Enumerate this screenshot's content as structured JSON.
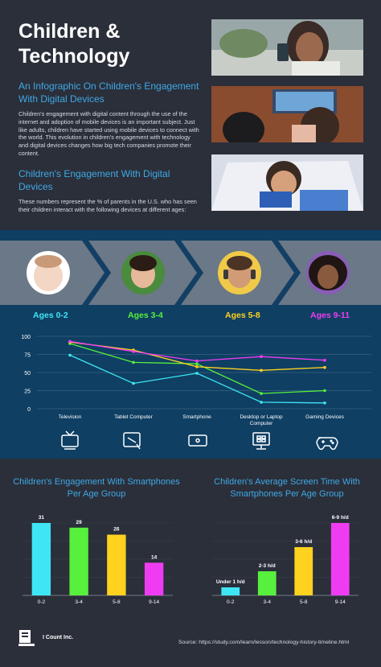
{
  "header": {
    "title": "Children & Technology",
    "subtitle": "An Infographic On Children's Engagement With Digital Devices",
    "intro": "Children's engagement with digital content through the use of the internet and adoption of mobile devices is an important subject. Just like adults, children have started using mobile devices to connect with the world. This evolution in children's engagement with technology and digital devices changes how big tech companies promote their content.",
    "section_title": "Children's Engagement With Digital Devices",
    "section_note": "These numbers represent the % of parents in the U.S. who has seen their children interact with the following devices at different ages:"
  },
  "age_groups": [
    {
      "label": "Ages 0-2",
      "color": "#3ee6f5"
    },
    {
      "label": "Ages 3-4",
      "color": "#57f03c"
    },
    {
      "label": "Ages 5-8",
      "color": "#ffd21f"
    },
    {
      "label": "Ages 9-11",
      "color": "#ef3cf2"
    }
  ],
  "chart_data": [
    {
      "type": "line",
      "categories": [
        "Television",
        "Tablet Computer",
        "Smartphone",
        "Desktop or Laptop Computer",
        "Gaming Devices"
      ],
      "ylim": [
        0,
        100
      ],
      "yticks": [
        0,
        25,
        50,
        75,
        100
      ],
      "series": [
        {
          "name": "Ages 0-2",
          "color": "#3ee6f5",
          "values": [
            74,
            35,
            49,
            9,
            8
          ]
        },
        {
          "name": "Ages 3-4",
          "color": "#57f03c",
          "values": [
            90,
            64,
            62,
            21,
            25
          ]
        },
        {
          "name": "Ages 5-8",
          "color": "#ffd21f",
          "values": [
            92,
            81,
            58,
            53,
            57
          ]
        },
        {
          "name": "Ages 9-11",
          "color": "#ef3cf2",
          "values": [
            93,
            79,
            66,
            72,
            67
          ]
        }
      ]
    },
    {
      "type": "bar",
      "title": "Children's Engagement With Smartphones Per Age Group",
      "categories": [
        "0-2",
        "3-4",
        "5-8",
        "9-14"
      ],
      "values": [
        31,
        29,
        26,
        14
      ],
      "value_labels": [
        "31",
        "29",
        "26",
        "14"
      ],
      "colors": [
        "#3ee6f5",
        "#57f03c",
        "#ffd21f",
        "#ef3cf2"
      ],
      "ylim": [
        0,
        31
      ]
    },
    {
      "type": "bar",
      "title": "Children's Average Screen Time With Smartphones Per Age Group",
      "categories": [
        "0-2",
        "3-4",
        "5-8",
        "9-14"
      ],
      "values": [
        1,
        3,
        6,
        9
      ],
      "value_labels": [
        "Under 1 h/d",
        "2-3 h/d",
        "3-6 h/d",
        "6-9 h/d"
      ],
      "colors": [
        "#3ee6f5",
        "#57f03c",
        "#ffd21f",
        "#ef3cf2"
      ],
      "ylim": [
        0,
        9
      ]
    }
  ],
  "device_icons": [
    "tv-icon",
    "tablet-icon",
    "smartphone-icon",
    "desktop-icon",
    "gamepad-icon"
  ],
  "footer": {
    "company": "I Count Inc.",
    "source": "Source: https://study.com/learn/lesson/technology-history-timeline.html"
  }
}
